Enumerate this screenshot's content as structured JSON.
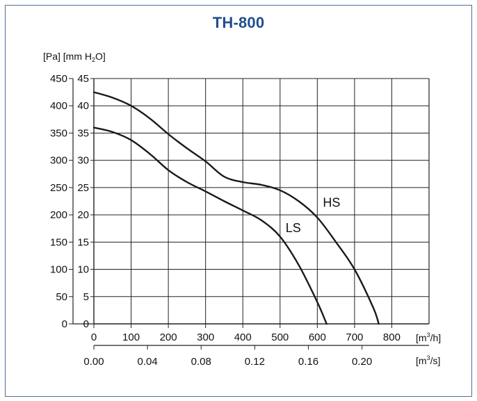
{
  "chart_data": {
    "type": "line",
    "title": "TH-800",
    "y_axis_left": {
      "unit_label": "[Pa]",
      "ticks": [
        0,
        50,
        100,
        150,
        200,
        250,
        300,
        350,
        400,
        450
      ],
      "range": [
        0,
        450
      ]
    },
    "y_axis_right": {
      "unit_label_prefix": "[mm H",
      "unit_label_sub": "2",
      "unit_label_suffix": "O]",
      "ticks": [
        0,
        5,
        10,
        15,
        20,
        25,
        30,
        35,
        40,
        45
      ],
      "range": [
        0,
        45
      ]
    },
    "x_axis_primary": {
      "unit_label_prefix": "[m",
      "unit_label_sup": "3",
      "unit_label_suffix": "/h]",
      "ticks": [
        0,
        100,
        200,
        300,
        400,
        500,
        600,
        700,
        800
      ],
      "range": [
        0,
        900
      ]
    },
    "x_axis_secondary": {
      "unit_label_prefix": "[m",
      "unit_label_sup": "3",
      "unit_label_suffix": "/s]",
      "ticks": [
        "0.00",
        "0.04",
        "0.08",
        "0.12",
        "0.16",
        "0.20"
      ],
      "tick_values": [
        0,
        0.04,
        0.08,
        0.12,
        0.16,
        0.2
      ]
    },
    "grid": true,
    "series": [
      {
        "name": "HS",
        "x": [
          0,
          50,
          100,
          150,
          200,
          250,
          300,
          350,
          400,
          450,
          500,
          550,
          600,
          650,
          700,
          750,
          765
        ],
        "y": [
          425,
          415,
          400,
          377,
          348,
          322,
          298,
          270,
          260,
          255,
          245,
          225,
          195,
          150,
          100,
          30,
          0
        ]
      },
      {
        "name": "LS",
        "x": [
          0,
          50,
          100,
          150,
          200,
          250,
          300,
          350,
          400,
          450,
          500,
          550,
          600,
          625
        ],
        "y": [
          360,
          352,
          337,
          312,
          282,
          260,
          243,
          225,
          208,
          190,
          160,
          108,
          40,
          0
        ]
      }
    ]
  }
}
